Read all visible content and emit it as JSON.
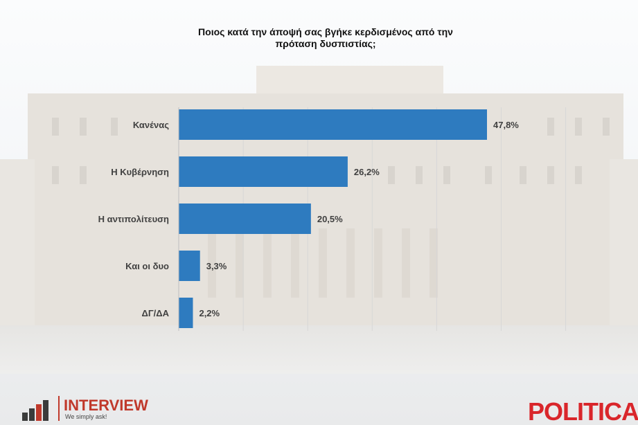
{
  "title_line1": "Ποιος κατά την άποψή σας βγήκε κερδισμένος από την",
  "title_line2": "πρόταση δυσπιστίας;",
  "colors": {
    "bar": "#2e7bbf",
    "brand_red": "#d9262b"
  },
  "chart_data": {
    "type": "bar",
    "orientation": "horizontal",
    "title": "Ποιος κατά την άποψή σας βγήκε κερδισμένος από την πρόταση δυσπιστίας;",
    "categories": [
      "Κανένας",
      "Η Κυβέρνηση",
      "Η αντιπολίτευση",
      "Και οι δυο",
      "ΔΓ/ΔΑ"
    ],
    "values": [
      47.8,
      26.2,
      20.5,
      3.3,
      2.2
    ],
    "value_labels": [
      "47,8%",
      "26,2%",
      "20,5%",
      "3,3%",
      "2,2%"
    ],
    "unit": "%",
    "xlim": [
      0,
      70
    ],
    "grid": true,
    "legend": "none"
  },
  "logo_left": {
    "name": "INTERVIEW",
    "slogan": "We simply ask!"
  },
  "brand_right": "POLITICAL"
}
